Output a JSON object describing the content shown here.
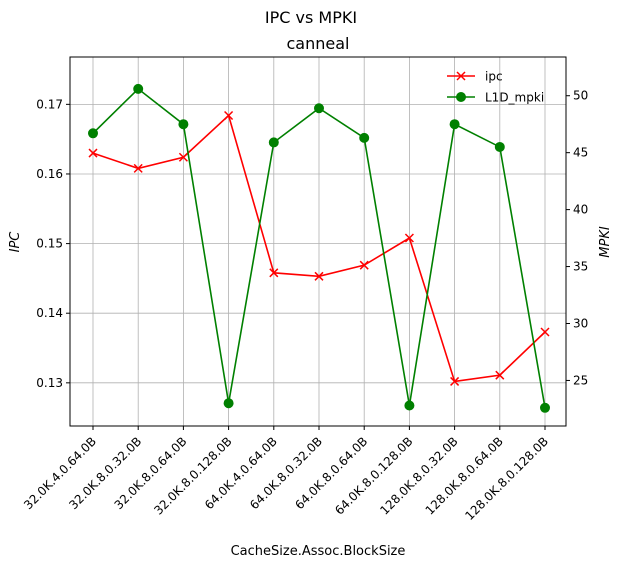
{
  "suptitle": "IPC vs MPKI",
  "chart_data": {
    "type": "line",
    "title": "canneal",
    "xlabel": "CacheSize.Assoc.BlockSize",
    "ylabel_left": "IPC",
    "ylabel_right": "MPKI",
    "categories": [
      "32.0K.4.0.64.0B",
      "32.0K.8.0.32.0B",
      "32.0K.8.0.64.0B",
      "32.0K.8.0.128.0B",
      "64.0K.4.0.64.0B",
      "64.0K.8.0.32.0B",
      "64.0K.8.0.64.0B",
      "64.0K.8.0.128.0B",
      "128.0K.8.0.32.0B",
      "128.0K.8.0.64.0B",
      "128.0K.8.0.128.0B"
    ],
    "ylim_left": [
      0.1238,
      0.1768
    ],
    "yticks_left": [
      "0.13",
      "0.14",
      "0.15",
      "0.16",
      "0.17"
    ],
    "ylim_right": [
      21.0,
      53.4
    ],
    "yticks_right": [
      "25",
      "30",
      "35",
      "40",
      "45",
      "50"
    ],
    "grid": true,
    "legend_position": "top-right",
    "series": [
      {
        "name": "ipc",
        "axis": "left",
        "color": "#ff0000",
        "marker": "x",
        "values": [
          0.163,
          0.1608,
          0.1624,
          0.1684,
          0.1458,
          0.1453,
          0.1469,
          0.1508,
          0.1302,
          0.1311,
          0.1373
        ]
      },
      {
        "name": "L1D_mpki",
        "axis": "right",
        "color": "#008000",
        "marker": "o",
        "values": [
          46.7,
          50.6,
          47.5,
          23.0,
          45.9,
          48.9,
          46.3,
          22.8,
          47.5,
          45.5,
          22.6
        ]
      }
    ]
  }
}
